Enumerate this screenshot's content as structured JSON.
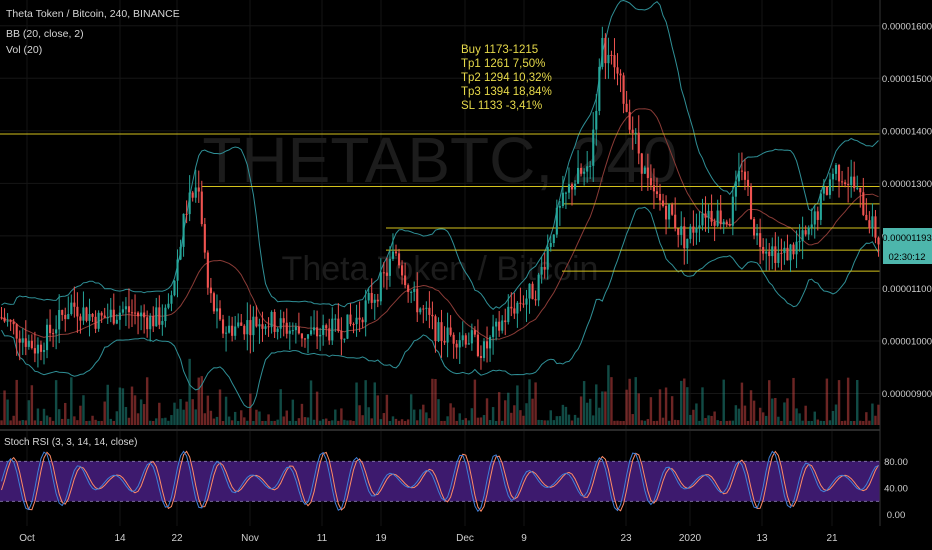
{
  "header": {
    "symbol_line": "Theta Token / Bitcoin, 240, BINANCE",
    "bb_label": "BB (20, close, 2)",
    "vol_label": "Vol (20)"
  },
  "watermark": {
    "ticker": "THETABTC, 240",
    "name": "Theta Token / Bitcoin"
  },
  "annotation": {
    "lines": [
      "Buy 1173-1215",
      "Tp1 1261  7,50%",
      "Tp2 1294  10,32%",
      "Tp3 1394  18,84%",
      "SL 1133  -3,41%"
    ]
  },
  "price_badge": {
    "price": "0.00001193",
    "countdown": "02:30:12"
  },
  "stoch_label": "Stoch RSI (3, 3, 14, 14, close)",
  "colors": {
    "up": "#26a69a",
    "down": "#ef5350",
    "bb": "#2f8f96",
    "level": "#d4c21d",
    "stoch_k": "#3f7fd8",
    "stoch_d": "#ff8a65",
    "stoch_band": "#3d1a6e",
    "price_badge": "#4db6ac"
  },
  "chart_data": {
    "type": "candlestick",
    "y_axis_labels": [
      "0.00001600",
      "0.00001500",
      "0.00001400",
      "0.00001300",
      "0.00001200",
      "0.00001100",
      "0.00001000",
      "0.00000900"
    ],
    "ylim": [
      8.4e-06,
      1.63e-05
    ],
    "x_tick_labels": [
      "Oct",
      "14",
      "22",
      "Nov",
      "11",
      "19",
      "Dec",
      "9",
      "23",
      "2020",
      "13",
      "21"
    ],
    "horizontal_levels": [
      1.394e-05,
      1.294e-05,
      1.261e-05,
      1.215e-05,
      1.173e-05,
      1.133e-05
    ],
    "price_path": [
      [
        0,
        1.045e-05
      ],
      [
        0.04,
        9.85e-06
      ],
      [
        0.08,
        1.07e-05
      ],
      [
        0.11,
        1.04e-05
      ],
      [
        0.14,
        1.06e-05
      ],
      [
        0.17,
        1.04e-05
      ],
      [
        0.19,
        1.05e-05
      ],
      [
        0.21,
        1.25e-05
      ],
      [
        0.225,
        1.3e-05
      ],
      [
        0.235,
        1.1e-05
      ],
      [
        0.25,
        1.02e-05
      ],
      [
        0.3,
        1.04e-05
      ],
      [
        0.35,
        1.01e-05
      ],
      [
        0.4,
        1.03e-05
      ],
      [
        0.43,
        1.1e-05
      ],
      [
        0.45,
        1.17e-05
      ],
      [
        0.47,
        1.08e-05
      ],
      [
        0.5,
        1.01e-05
      ],
      [
        0.53,
        1.01e-05
      ],
      [
        0.55,
        9.8e-06
      ],
      [
        0.58,
        1.06e-05
      ],
      [
        0.61,
        1.1e-05
      ],
      [
        0.63,
        1.22e-05
      ],
      [
        0.65,
        1.3e-05
      ],
      [
        0.67,
        1.33e-05
      ],
      [
        0.685,
        1.56e-05
      ],
      [
        0.7,
        1.52e-05
      ],
      [
        0.72,
        1.4e-05
      ],
      [
        0.74,
        1.28e-05
      ],
      [
        0.76,
        1.25e-05
      ],
      [
        0.78,
        1.19e-05
      ],
      [
        0.8,
        1.25e-05
      ],
      [
        0.83,
        1.23e-05
      ],
      [
        0.845,
        1.34e-05
      ],
      [
        0.86,
        1.2e-05
      ],
      [
        0.89,
        1.16e-05
      ],
      [
        0.92,
        1.2e-05
      ],
      [
        0.95,
        1.33e-05
      ],
      [
        0.97,
        1.3e-05
      ],
      [
        1.0,
        1.193e-05
      ]
    ],
    "stoch_labels": [
      "80.00",
      "40.00",
      "0.00"
    ],
    "stoch_ylim": [
      -8,
      100
    ],
    "stoch_band": [
      20,
      80
    ]
  }
}
